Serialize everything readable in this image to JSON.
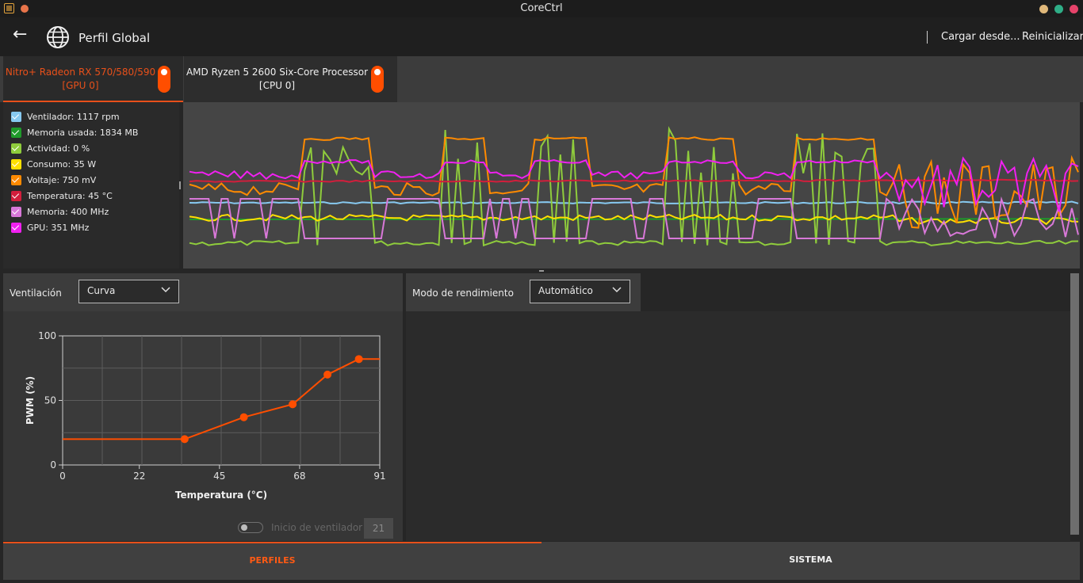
{
  "window": {
    "title": "CoreCtrl"
  },
  "header": {
    "profile_title": "Perfil Global",
    "load_from": "Cargar desde...",
    "reset": "Reinicializar"
  },
  "devices": [
    {
      "name": "Nitro+ Radeon RX 570/580/590",
      "id": "[GPU 0]",
      "active": true
    },
    {
      "name": "AMD Ryzen 5 2600 Six-Core Processor",
      "id": "[CPU 0]",
      "active": false
    }
  ],
  "colors": {
    "accent": "#ff4e00",
    "active_tab_text": "#e8501a"
  },
  "sensors": [
    {
      "label": "Ventilador: 1117 rpm",
      "color": "#87c9f0"
    },
    {
      "label": "Memoria usada: 1834 MB",
      "color": "#1f9a2a"
    },
    {
      "label": "Actividad: 0 %",
      "color": "#8fcc3c"
    },
    {
      "label": "Consumo: 35 W",
      "color": "#ffe000"
    },
    {
      "label": "Voltaje: 750 mV",
      "color": "#ff8a00"
    },
    {
      "label": "Temperatura: 45 °C",
      "color": "#d21e3c"
    },
    {
      "label": "Memoria: 400 MHz",
      "color": "#d878d8"
    },
    {
      "label": "GPU: 351 MHz",
      "color": "#f020f0"
    }
  ],
  "fan": {
    "label": "Ventilación",
    "mode": "Curva",
    "start_label": "Inicio de ventilador",
    "start_value": "21"
  },
  "performance": {
    "label": "Modo de rendimiento",
    "mode": "Automático"
  },
  "bottom_nav": {
    "profiles": "PERFILES",
    "system": "SISTEMA"
  },
  "chart_data": {
    "type": "line",
    "xlabel": "Temperatura (°C)",
    "ylabel": "PWM (%)",
    "xlim": [
      0,
      91
    ],
    "ylim": [
      0,
      100
    ],
    "xticks": [
      0,
      22,
      45,
      68,
      91
    ],
    "yticks": [
      0,
      50,
      100
    ],
    "grid": true,
    "x": [
      0,
      35,
      52,
      66,
      76,
      85,
      91
    ],
    "y": [
      20,
      20,
      37,
      47,
      70,
      82,
      82
    ],
    "point_markers": [
      35,
      52,
      66,
      76,
      85
    ]
  }
}
